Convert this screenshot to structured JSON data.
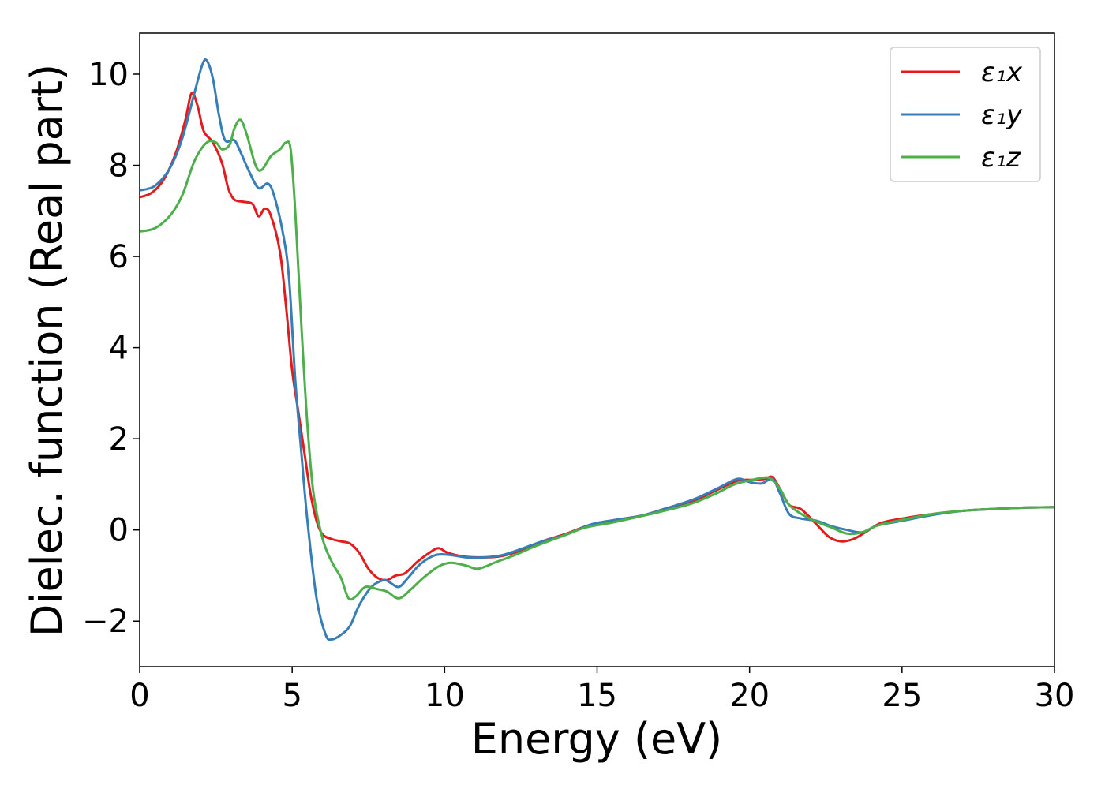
{
  "chart_data": {
    "type": "line",
    "title": "",
    "xlabel": "Energy (eV)",
    "ylabel": "Dielec. function (Real part)",
    "xlim": [
      0,
      30
    ],
    "ylim": [
      -3,
      10.9
    ],
    "xticks": [
      0,
      5,
      10,
      15,
      20,
      25,
      30
    ],
    "xtick_labels": [
      "0",
      "5",
      "10",
      "15",
      "20",
      "25",
      "30"
    ],
    "yticks": [
      -2,
      0,
      2,
      4,
      6,
      8,
      10
    ],
    "ytick_labels": [
      "−2",
      "0",
      "2",
      "4",
      "6",
      "8",
      "10"
    ],
    "grid": false,
    "legend_position": "top-right",
    "series": [
      {
        "name": "ε₁x",
        "color": "#e41a1c",
        "points": [
          [
            0,
            7.3
          ],
          [
            0.4,
            7.4
          ],
          [
            0.8,
            7.7
          ],
          [
            1.2,
            8.3
          ],
          [
            1.5,
            9.0
          ],
          [
            1.7,
            9.58
          ],
          [
            1.9,
            9.3
          ],
          [
            2.1,
            8.75
          ],
          [
            2.4,
            8.5
          ],
          [
            2.7,
            8.05
          ],
          [
            2.9,
            7.5
          ],
          [
            3.1,
            7.25
          ],
          [
            3.4,
            7.2
          ],
          [
            3.7,
            7.15
          ],
          [
            3.9,
            6.88
          ],
          [
            4.1,
            7.05
          ],
          [
            4.3,
            6.9
          ],
          [
            4.6,
            6.1
          ],
          [
            4.8,
            4.9
          ],
          [
            5.0,
            3.5
          ],
          [
            5.2,
            2.6
          ],
          [
            5.4,
            1.7
          ],
          [
            5.6,
            0.8
          ],
          [
            5.8,
            0.2
          ],
          [
            6.0,
            -0.1
          ],
          [
            6.3,
            -0.2
          ],
          [
            6.6,
            -0.25
          ],
          [
            6.9,
            -0.3
          ],
          [
            7.2,
            -0.5
          ],
          [
            7.5,
            -0.85
          ],
          [
            7.8,
            -1.05
          ],
          [
            8.1,
            -1.1
          ],
          [
            8.4,
            -1.0
          ],
          [
            8.7,
            -0.95
          ],
          [
            9.1,
            -0.7
          ],
          [
            9.5,
            -0.5
          ],
          [
            9.8,
            -0.4
          ],
          [
            10.1,
            -0.5
          ],
          [
            10.6,
            -0.58
          ],
          [
            11.2,
            -0.6
          ],
          [
            11.8,
            -0.58
          ],
          [
            12.5,
            -0.45
          ],
          [
            13.2,
            -0.25
          ],
          [
            14,
            -0.08
          ],
          [
            14.8,
            0.12
          ],
          [
            15.6,
            0.22
          ],
          [
            16.5,
            0.32
          ],
          [
            17.3,
            0.48
          ],
          [
            18.2,
            0.65
          ],
          [
            19.0,
            0.9
          ],
          [
            19.6,
            1.08
          ],
          [
            20.1,
            1.1
          ],
          [
            20.5,
            1.12
          ],
          [
            20.75,
            1.16
          ],
          [
            21.0,
            0.9
          ],
          [
            21.3,
            0.55
          ],
          [
            21.7,
            0.45
          ],
          [
            22.2,
            0.12
          ],
          [
            22.6,
            -0.15
          ],
          [
            23.0,
            -0.25
          ],
          [
            23.4,
            -0.2
          ],
          [
            23.8,
            -0.05
          ],
          [
            24.3,
            0.15
          ],
          [
            25,
            0.25
          ],
          [
            26,
            0.35
          ],
          [
            27,
            0.42
          ],
          [
            28,
            0.46
          ],
          [
            29,
            0.49
          ],
          [
            30,
            0.5
          ]
        ]
      },
      {
        "name": "ε₁y",
        "color": "#377eb8",
        "points": [
          [
            0,
            7.45
          ],
          [
            0.5,
            7.55
          ],
          [
            1.0,
            7.95
          ],
          [
            1.4,
            8.6
          ],
          [
            1.8,
            9.6
          ],
          [
            2.05,
            10.2
          ],
          [
            2.2,
            10.3
          ],
          [
            2.4,
            9.9
          ],
          [
            2.6,
            9.1
          ],
          [
            2.8,
            8.55
          ],
          [
            3.1,
            8.55
          ],
          [
            3.3,
            8.3
          ],
          [
            3.6,
            7.85
          ],
          [
            3.9,
            7.5
          ],
          [
            4.2,
            7.6
          ],
          [
            4.4,
            7.35
          ],
          [
            4.7,
            6.5
          ],
          [
            4.9,
            5.5
          ],
          [
            5.1,
            3.3
          ],
          [
            5.3,
            1.7
          ],
          [
            5.5,
            0.2
          ],
          [
            5.8,
            -1.5
          ],
          [
            6.1,
            -2.3
          ],
          [
            6.3,
            -2.4
          ],
          [
            6.6,
            -2.3
          ],
          [
            6.9,
            -2.1
          ],
          [
            7.2,
            -1.65
          ],
          [
            7.6,
            -1.25
          ],
          [
            8.0,
            -1.1
          ],
          [
            8.2,
            -1.15
          ],
          [
            8.5,
            -1.25
          ],
          [
            8.8,
            -1.05
          ],
          [
            9.2,
            -0.75
          ],
          [
            9.7,
            -0.55
          ],
          [
            10.2,
            -0.55
          ],
          [
            10.7,
            -0.6
          ],
          [
            11.3,
            -0.6
          ],
          [
            11.9,
            -0.55
          ],
          [
            12.5,
            -0.42
          ],
          [
            13.2,
            -0.25
          ],
          [
            14,
            -0.1
          ],
          [
            14.8,
            0.12
          ],
          [
            15.6,
            0.22
          ],
          [
            16.5,
            0.32
          ],
          [
            17.3,
            0.48
          ],
          [
            18.2,
            0.68
          ],
          [
            19.0,
            0.93
          ],
          [
            19.6,
            1.12
          ],
          [
            20.0,
            1.05
          ],
          [
            20.4,
            1.02
          ],
          [
            20.75,
            1.12
          ],
          [
            21.0,
            0.8
          ],
          [
            21.3,
            0.35
          ],
          [
            21.7,
            0.25
          ],
          [
            22.2,
            0.2
          ],
          [
            22.7,
            0.08
          ],
          [
            23.2,
            0.0
          ],
          [
            23.7,
            -0.05
          ],
          [
            24.2,
            0.1
          ],
          [
            25,
            0.2
          ],
          [
            26,
            0.33
          ],
          [
            27,
            0.42
          ],
          [
            28,
            0.46
          ],
          [
            29,
            0.49
          ],
          [
            30,
            0.5
          ]
        ]
      },
      {
        "name": "ε₁z",
        "color": "#4daf4a",
        "points": [
          [
            0,
            6.55
          ],
          [
            0.5,
            6.62
          ],
          [
            1.0,
            6.9
          ],
          [
            1.4,
            7.35
          ],
          [
            1.8,
            8.1
          ],
          [
            2.2,
            8.5
          ],
          [
            2.5,
            8.5
          ],
          [
            2.7,
            8.35
          ],
          [
            2.95,
            8.45
          ],
          [
            3.1,
            8.8
          ],
          [
            3.3,
            9.0
          ],
          [
            3.5,
            8.7
          ],
          [
            3.8,
            8.0
          ],
          [
            4.0,
            7.9
          ],
          [
            4.3,
            8.2
          ],
          [
            4.6,
            8.35
          ],
          [
            4.8,
            8.5
          ],
          [
            4.95,
            8.35
          ],
          [
            5.1,
            7.0
          ],
          [
            5.3,
            4.5
          ],
          [
            5.5,
            2.3
          ],
          [
            5.7,
            0.8
          ],
          [
            6.0,
            -0.2
          ],
          [
            6.3,
            -0.7
          ],
          [
            6.6,
            -1.05
          ],
          [
            6.85,
            -1.5
          ],
          [
            7.1,
            -1.45
          ],
          [
            7.4,
            -1.25
          ],
          [
            7.8,
            -1.3
          ],
          [
            8.1,
            -1.35
          ],
          [
            8.5,
            -1.5
          ],
          [
            8.9,
            -1.3
          ],
          [
            9.3,
            -1.05
          ],
          [
            9.8,
            -0.8
          ],
          [
            10.2,
            -0.72
          ],
          [
            10.7,
            -0.78
          ],
          [
            11.1,
            -0.85
          ],
          [
            11.7,
            -0.7
          ],
          [
            12.3,
            -0.55
          ],
          [
            13.0,
            -0.35
          ],
          [
            13.8,
            -0.15
          ],
          [
            14.6,
            0.05
          ],
          [
            15.4,
            0.15
          ],
          [
            16.3,
            0.28
          ],
          [
            17.2,
            0.42
          ],
          [
            18.1,
            0.58
          ],
          [
            18.9,
            0.8
          ],
          [
            19.5,
            1.0
          ],
          [
            20.1,
            1.1
          ],
          [
            20.5,
            1.15
          ],
          [
            20.7,
            1.12
          ],
          [
            21.0,
            0.9
          ],
          [
            21.3,
            0.55
          ],
          [
            21.7,
            0.35
          ],
          [
            22.2,
            0.18
          ],
          [
            22.7,
            0.05
          ],
          [
            23.2,
            -0.08
          ],
          [
            23.7,
            -0.05
          ],
          [
            24.2,
            0.1
          ],
          [
            25,
            0.22
          ],
          [
            26,
            0.35
          ],
          [
            27,
            0.42
          ],
          [
            28,
            0.46
          ],
          [
            29,
            0.49
          ],
          [
            30,
            0.5
          ]
        ]
      }
    ]
  }
}
